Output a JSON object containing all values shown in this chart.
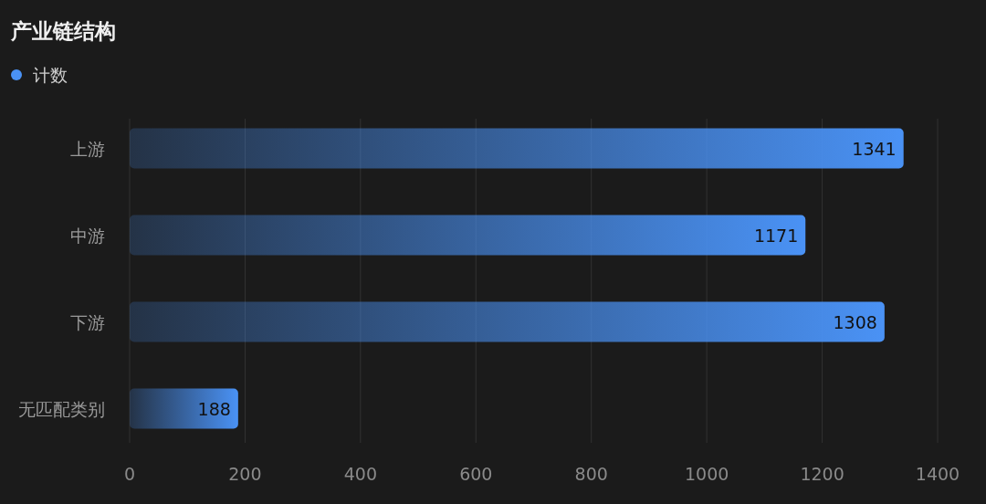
{
  "chart_data": {
    "type": "bar",
    "orientation": "horizontal",
    "title": "产业链结构",
    "categories": [
      "上游",
      "中游",
      "下游",
      "无匹配类别"
    ],
    "series": [
      {
        "name": "计数",
        "color": "#4a92f5",
        "values": [
          1341,
          1171,
          1308,
          188
        ]
      }
    ],
    "xlim": [
      0,
      1400
    ],
    "xticks": [
      0,
      200,
      400,
      600,
      800,
      1000,
      1200,
      1400
    ],
    "grid": "x",
    "legend": "top left",
    "data_labels": true
  }
}
